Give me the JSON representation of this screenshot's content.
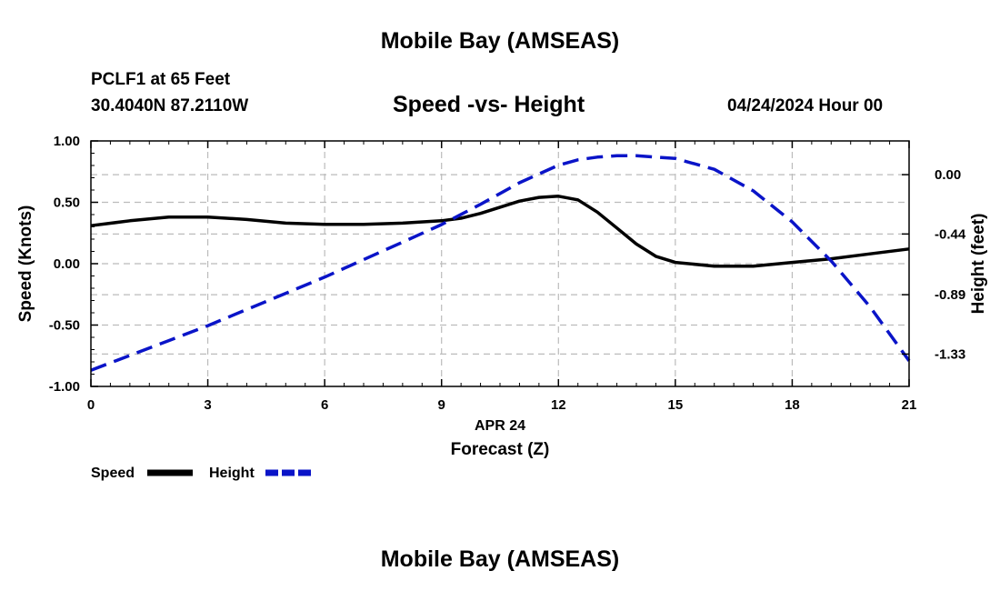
{
  "page": {
    "title_top": "Mobile Bay (AMSEAS)",
    "title_bottom": "Mobile Bay (AMSEAS)",
    "station_line": "PCLF1 at 65 Feet",
    "coords_line": "30.4040N  87.2110W",
    "date_line": "04/24/2024 Hour 00"
  },
  "colors": {
    "speed": "#000000",
    "height": "#0a14c8",
    "grid": "#bbbbbb"
  },
  "chart_data": {
    "type": "line",
    "title": "Speed -vs- Height",
    "xlabel": "Forecast (Z)",
    "x_date_label": "APR 24",
    "ylabel": "Speed (Knots)",
    "y2label": "Height (feet)",
    "xlim": [
      0,
      21
    ],
    "ylim": [
      -1.0,
      1.0
    ],
    "y2lim": [
      -1.57,
      0.25
    ],
    "xticks": [
      0,
      3,
      6,
      9,
      12,
      15,
      18,
      21
    ],
    "yticks": [
      -1.0,
      -0.5,
      0.0,
      0.5,
      1.0
    ],
    "ytick_labels": [
      "-1.00",
      "-0.50",
      "0.00",
      "0.50",
      "1.00"
    ],
    "y2ticks": [
      -1.33,
      -0.89,
      -0.44,
      0.0
    ],
    "y2tick_labels": [
      "-1.33",
      "-0.89",
      "-0.44",
      "0.00"
    ],
    "grid": true,
    "legend_position": "bottom-left",
    "series": [
      {
        "name": "Speed",
        "axis": "left",
        "style": "solid",
        "x": [
          0,
          1,
          2,
          3,
          4,
          5,
          6,
          7,
          8,
          9,
          9.5,
          10,
          10.5,
          11,
          11.5,
          12,
          12.5,
          13,
          13.5,
          14,
          14.5,
          15,
          16,
          17,
          18,
          19,
          20,
          21
        ],
        "values": [
          0.31,
          0.35,
          0.38,
          0.38,
          0.36,
          0.33,
          0.32,
          0.32,
          0.33,
          0.35,
          0.37,
          0.41,
          0.46,
          0.51,
          0.54,
          0.55,
          0.52,
          0.42,
          0.29,
          0.16,
          0.06,
          0.01,
          -0.02,
          -0.02,
          0.01,
          0.04,
          0.08,
          0.12
        ]
      },
      {
        "name": "Height",
        "axis": "right",
        "style": "dashed",
        "x": [
          0,
          1,
          2,
          3,
          4,
          5,
          6,
          7,
          8,
          9,
          10,
          11,
          12,
          12.5,
          13,
          13.5,
          14,
          14.5,
          15,
          16,
          17,
          18,
          19,
          20,
          21
        ],
        "values": [
          -1.45,
          -1.34,
          -1.23,
          -1.12,
          -1.0,
          -0.88,
          -0.76,
          -0.63,
          -0.5,
          -0.37,
          -0.22,
          -0.06,
          0.07,
          0.11,
          0.13,
          0.14,
          0.14,
          0.13,
          0.12,
          0.04,
          -0.12,
          -0.35,
          -0.64,
          -0.98,
          -1.38
        ]
      }
    ]
  }
}
